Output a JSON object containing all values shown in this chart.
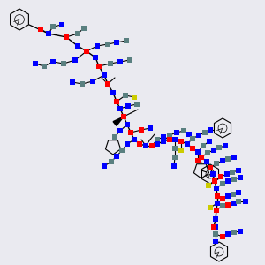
{
  "bg": "#eaeaf0",
  "N": "#0000ff",
  "O": "#ff0000",
  "C": "#5a8080",
  "S": "#cccc00",
  "black": "#000000",
  "figsize": [
    3.0,
    3.0
  ],
  "dpi": 100,
  "sq": 0.022
}
